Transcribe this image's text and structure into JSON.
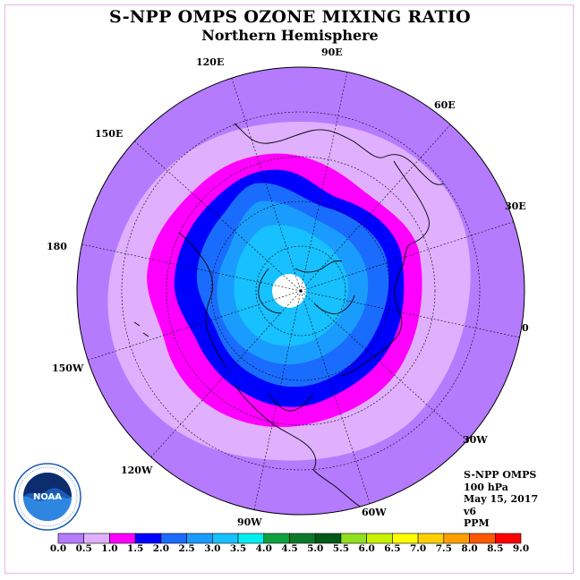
{
  "header": {
    "title": "S-NPP OMPS OZONE MIXING RATIO",
    "subtitle": "Northern Hemisphere"
  },
  "longitude_labels": [
    "120E",
    "90E",
    "60E",
    "150E",
    "30E",
    "180",
    "0",
    "150W",
    "30W",
    "120W",
    "60W",
    "90W"
  ],
  "info": {
    "instrument": "S-NPP OMPS",
    "level": "100 hPa",
    "date": "May 15, 2017",
    "version": "v6",
    "units": "PPM"
  },
  "logo": {
    "icon": "noaa-logo-icon",
    "text": "NOAA"
  },
  "colorbar": {
    "ticks": [
      "0.0",
      "0.5",
      "1.0",
      "1.5",
      "2.0",
      "2.5",
      "3.0",
      "3.5",
      "4.0",
      "4.5",
      "5.0",
      "5.5",
      "6.0",
      "6.5",
      "7.0",
      "7.5",
      "8.0",
      "8.5",
      "9.0"
    ],
    "colors": [
      "#b57bff",
      "#e0b0ff",
      "#ff00ff",
      "#0000ff",
      "#1a6cff",
      "#1a9cff",
      "#17c0ff",
      "#00f0f0",
      "#10a040",
      "#0a7a2a",
      "#005a18",
      "#90e020",
      "#c8f000",
      "#ffff00",
      "#ffd000",
      "#ffa000",
      "#ff5800",
      "#ff0000",
      "#8a5a3a"
    ]
  },
  "map_colors": {
    "outer": "#b57bff",
    "band1": "#e0b0ff",
    "band2": "#ff00ff",
    "band3": "#0000ff",
    "band4": "#1a6cff",
    "band5": "#1a9cff",
    "band6": "#17c0ff",
    "pole": "#ffffff"
  }
}
